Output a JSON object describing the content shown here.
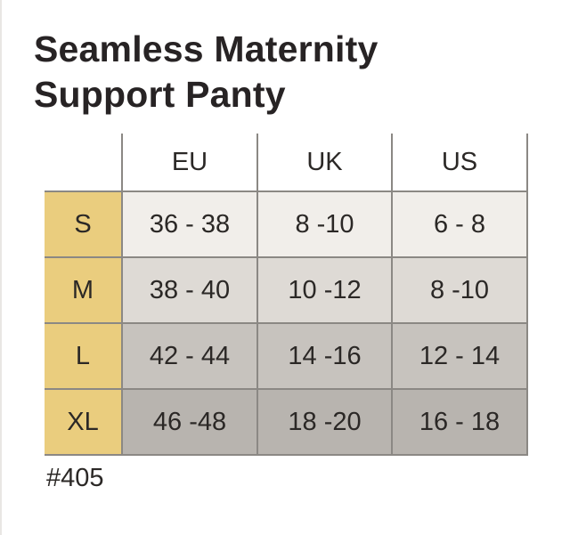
{
  "title": {
    "line1": "Seamless Maternity",
    "line2": "Support Panty"
  },
  "product_code": "#405",
  "colors": {
    "background": "#ffffff",
    "title_text": "#272324",
    "cell_text": "#2b2826",
    "border": "#8b8884",
    "label_column": "#eacd7e",
    "row_s": "#f1eeea",
    "row_m": "#dedad5",
    "row_l": "#c7c3be",
    "row_xl": "#b8b4af"
  },
  "chart_data": {
    "type": "table",
    "title": "Seamless Maternity Support Panty",
    "columns": [
      "",
      "EU",
      "UK",
      "US"
    ],
    "rows": [
      {
        "size": "S",
        "eu": "36 - 38",
        "uk": "8 -10",
        "us": "6 - 8"
      },
      {
        "size": "M",
        "eu": "38 - 40",
        "uk": "10 -12",
        "us": "8 -10"
      },
      {
        "size": "L",
        "eu": "42 - 44",
        "uk": "14 -16",
        "us": "12 - 14"
      },
      {
        "size": "XL",
        "eu": "46 -48",
        "uk": "18 -20",
        "us": "16 - 18"
      }
    ]
  }
}
